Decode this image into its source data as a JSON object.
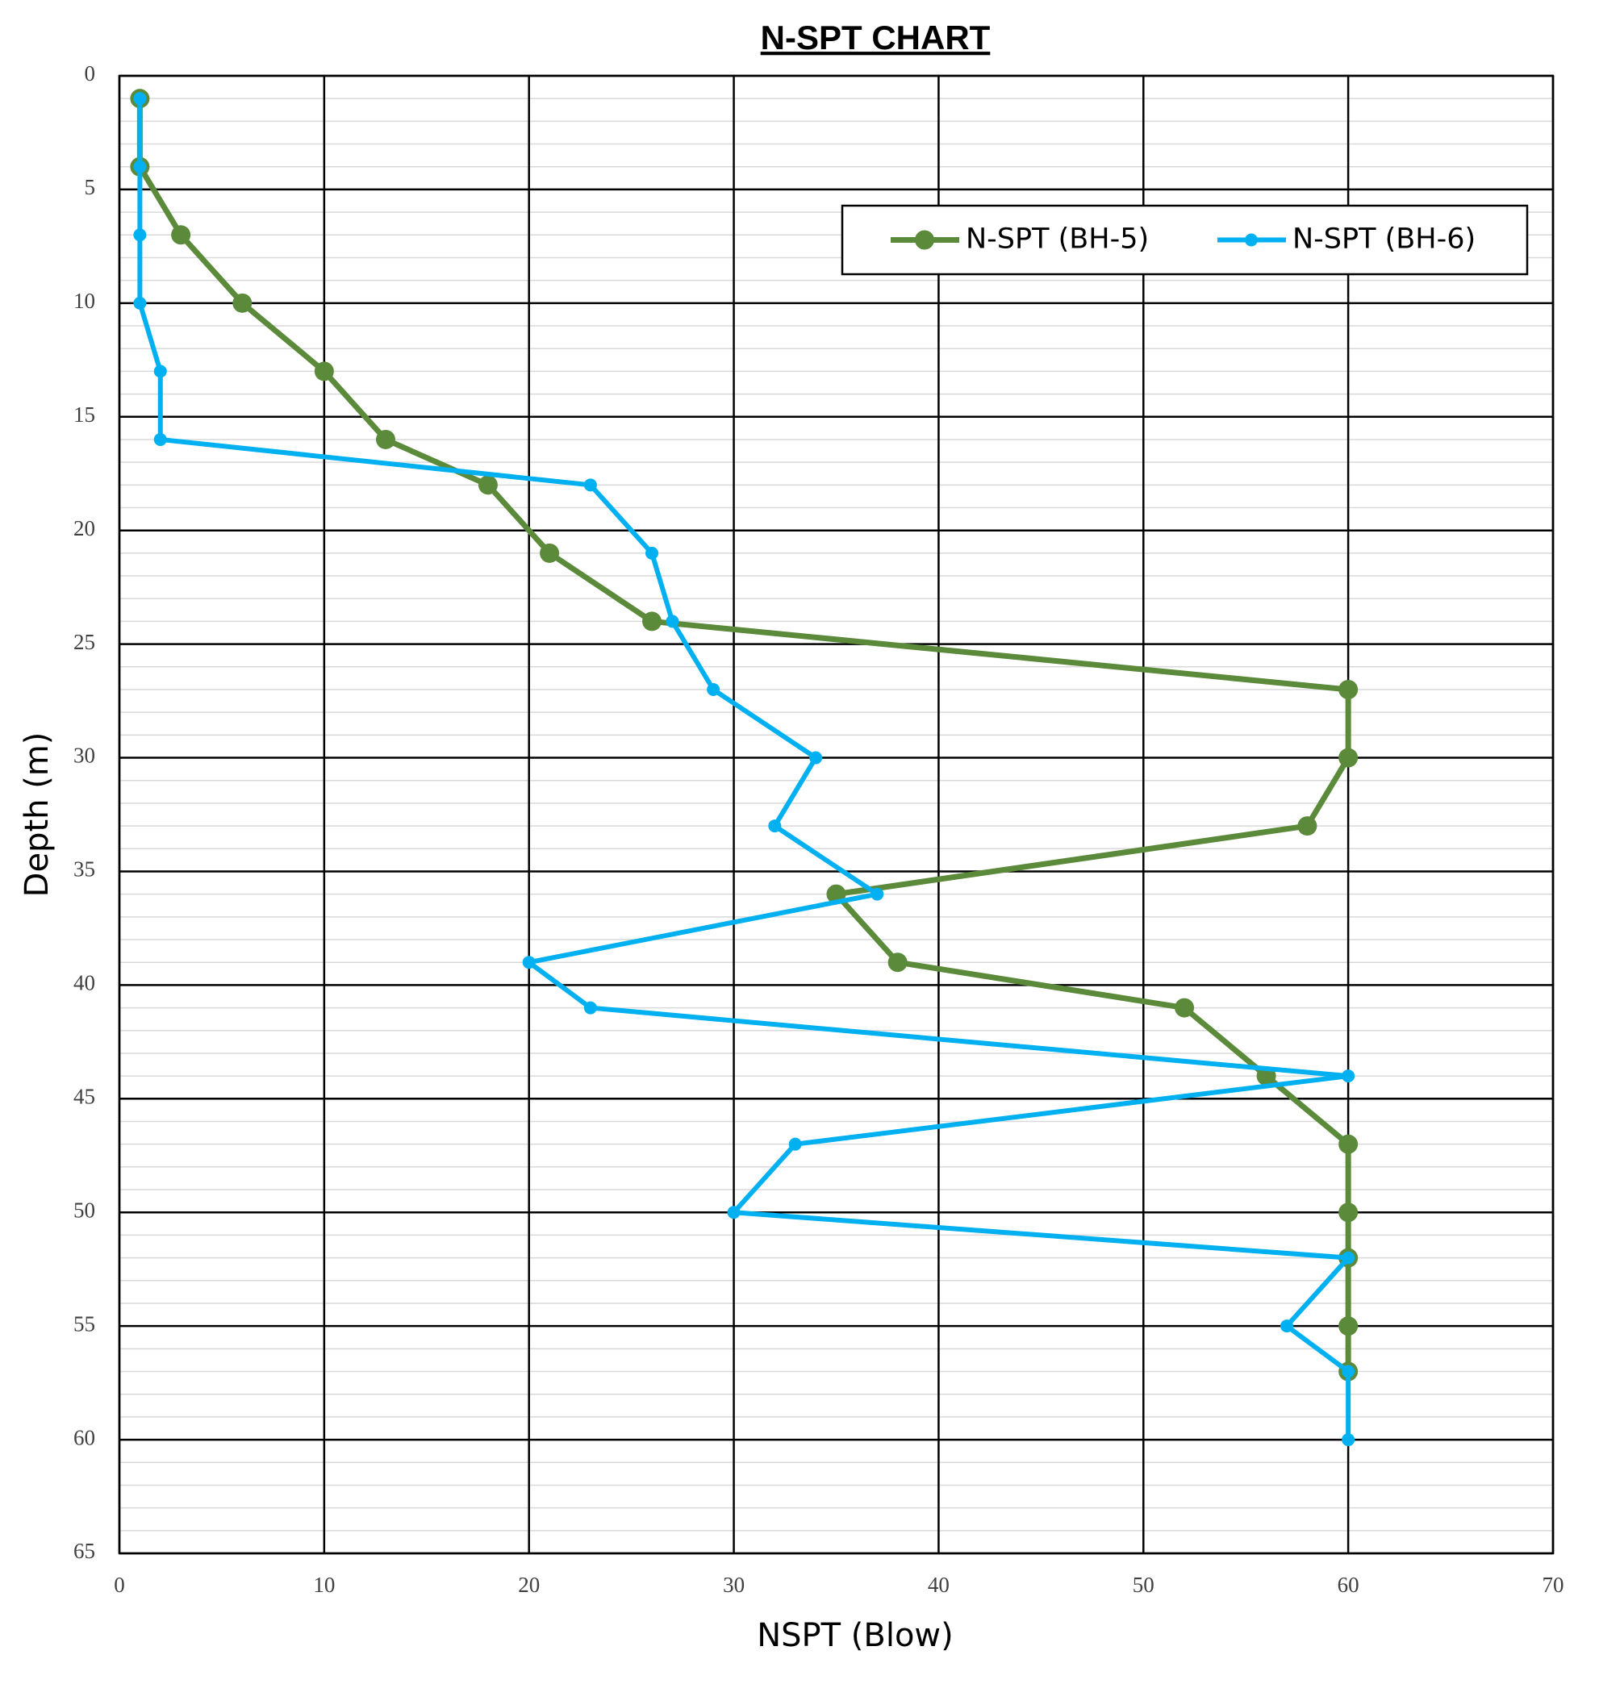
{
  "chart_data": {
    "type": "line",
    "title": "N-SPT CHART",
    "x_label": "NSPT (Blow)",
    "y_label": "Depth (m)",
    "xlim": [
      0,
      70
    ],
    "xticks": [
      0,
      10,
      20,
      30,
      40,
      50,
      60,
      70
    ],
    "ylim": [
      0,
      65
    ],
    "yticks": [
      0,
      5,
      10,
      15,
      20,
      25,
      30,
      35,
      40,
      45,
      50,
      55,
      60,
      65
    ],
    "y_inverted": true,
    "grid": true,
    "minor_grid": true,
    "legend": "upper right",
    "series": [
      {
        "name": "N-SPT (BH-5)",
        "color": "#5b8a3a",
        "x": [
          1,
          1,
          3,
          6,
          10,
          13,
          18,
          21,
          26,
          60,
          60,
          58,
          35,
          38,
          52,
          56,
          60,
          60,
          60,
          60,
          60
        ],
        "values": [
          1,
          4,
          7,
          10,
          13,
          16,
          18,
          21,
          24,
          27,
          30,
          33,
          36,
          39,
          41,
          44,
          47,
          50,
          52,
          55,
          57
        ]
      },
      {
        "name": "N-SPT (BH-6)",
        "color": "#00b0f0",
        "x": [
          1,
          1,
          1,
          1,
          2,
          2,
          23,
          26,
          27,
          29,
          34,
          32,
          37,
          20,
          23,
          60,
          33,
          30,
          60,
          57,
          60,
          60
        ],
        "values": [
          1,
          4,
          7,
          10,
          13,
          16,
          18,
          21,
          24,
          27,
          30,
          33,
          36,
          39,
          41,
          44,
          47,
          50,
          52,
          55,
          57,
          60
        ]
      }
    ]
  }
}
